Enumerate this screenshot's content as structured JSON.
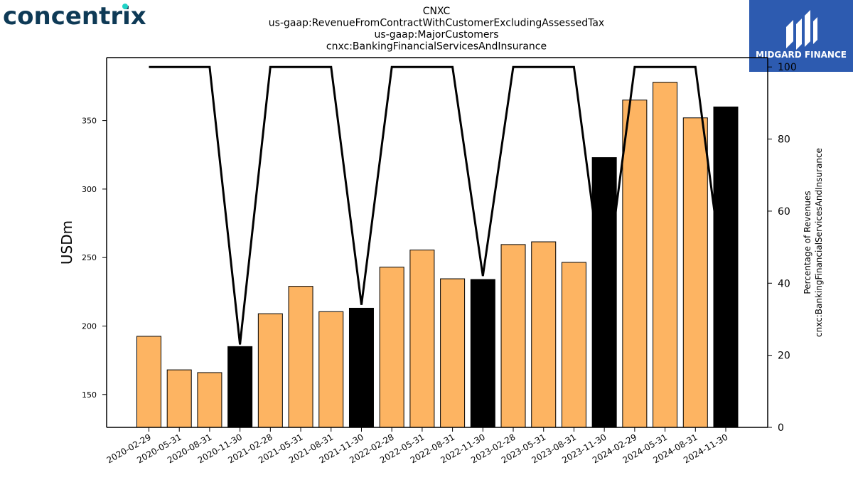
{
  "logo_left": {
    "text": "concentrix",
    "color": "#0e3a56",
    "accent": "#1fd3c6"
  },
  "logo_right": {
    "text": "MIDGARD FINANCE",
    "bg": "#2d5bb0"
  },
  "chart_data": {
    "type": "bar+line",
    "title_lines": [
      "CNXC",
      "us-gaap:RevenueFromContractWithCustomerExcludingAssessedTax",
      "us-gaap:MajorCustomers",
      "cnxc:BankingFinancialServicesAndInsurance"
    ],
    "ylabel_left": "USDm",
    "ylabel_right_lines": [
      "Percentage of Revenues",
      "cnxc:BankingFinancialServicesAndInsurance"
    ],
    "ylim_left": [
      126,
      396
    ],
    "yticks_left": [
      150,
      200,
      250,
      300,
      350
    ],
    "ylim_right": [
      0,
      102.6
    ],
    "yticks_right": [
      0,
      20,
      40,
      60,
      80,
      100
    ],
    "categories": [
      "2020-02-29",
      "2020-05-31",
      "2020-08-31",
      "2020-11-30",
      "2021-02-28",
      "2021-05-31",
      "2021-08-31",
      "2021-11-30",
      "2022-02-28",
      "2022-05-31",
      "2022-08-31",
      "2022-11-30",
      "2023-02-28",
      "2023-05-31",
      "2023-08-31",
      "2023-11-30",
      "2024-02-29",
      "2024-05-31",
      "2024-08-31",
      "2024-11-30"
    ],
    "bars": [
      192.5,
      168,
      166,
      185,
      209,
      229,
      210.5,
      213,
      243,
      255.5,
      234.5,
      234,
      259.5,
      261.5,
      246.5,
      323,
      365,
      378,
      352,
      360
    ],
    "bar_highlight": [
      false,
      false,
      false,
      true,
      false,
      false,
      false,
      true,
      false,
      false,
      false,
      true,
      false,
      false,
      false,
      true,
      false,
      false,
      false,
      true
    ],
    "line_values": [
      100,
      100,
      100,
      23,
      100,
      100,
      100,
      34,
      100,
      100,
      100,
      42,
      100,
      100,
      100,
      36,
      100,
      100,
      100,
      36
    ],
    "colors": {
      "bar": "#fdb462",
      "bar_highlight": "#000000",
      "line": "#000000"
    },
    "grid": false
  }
}
